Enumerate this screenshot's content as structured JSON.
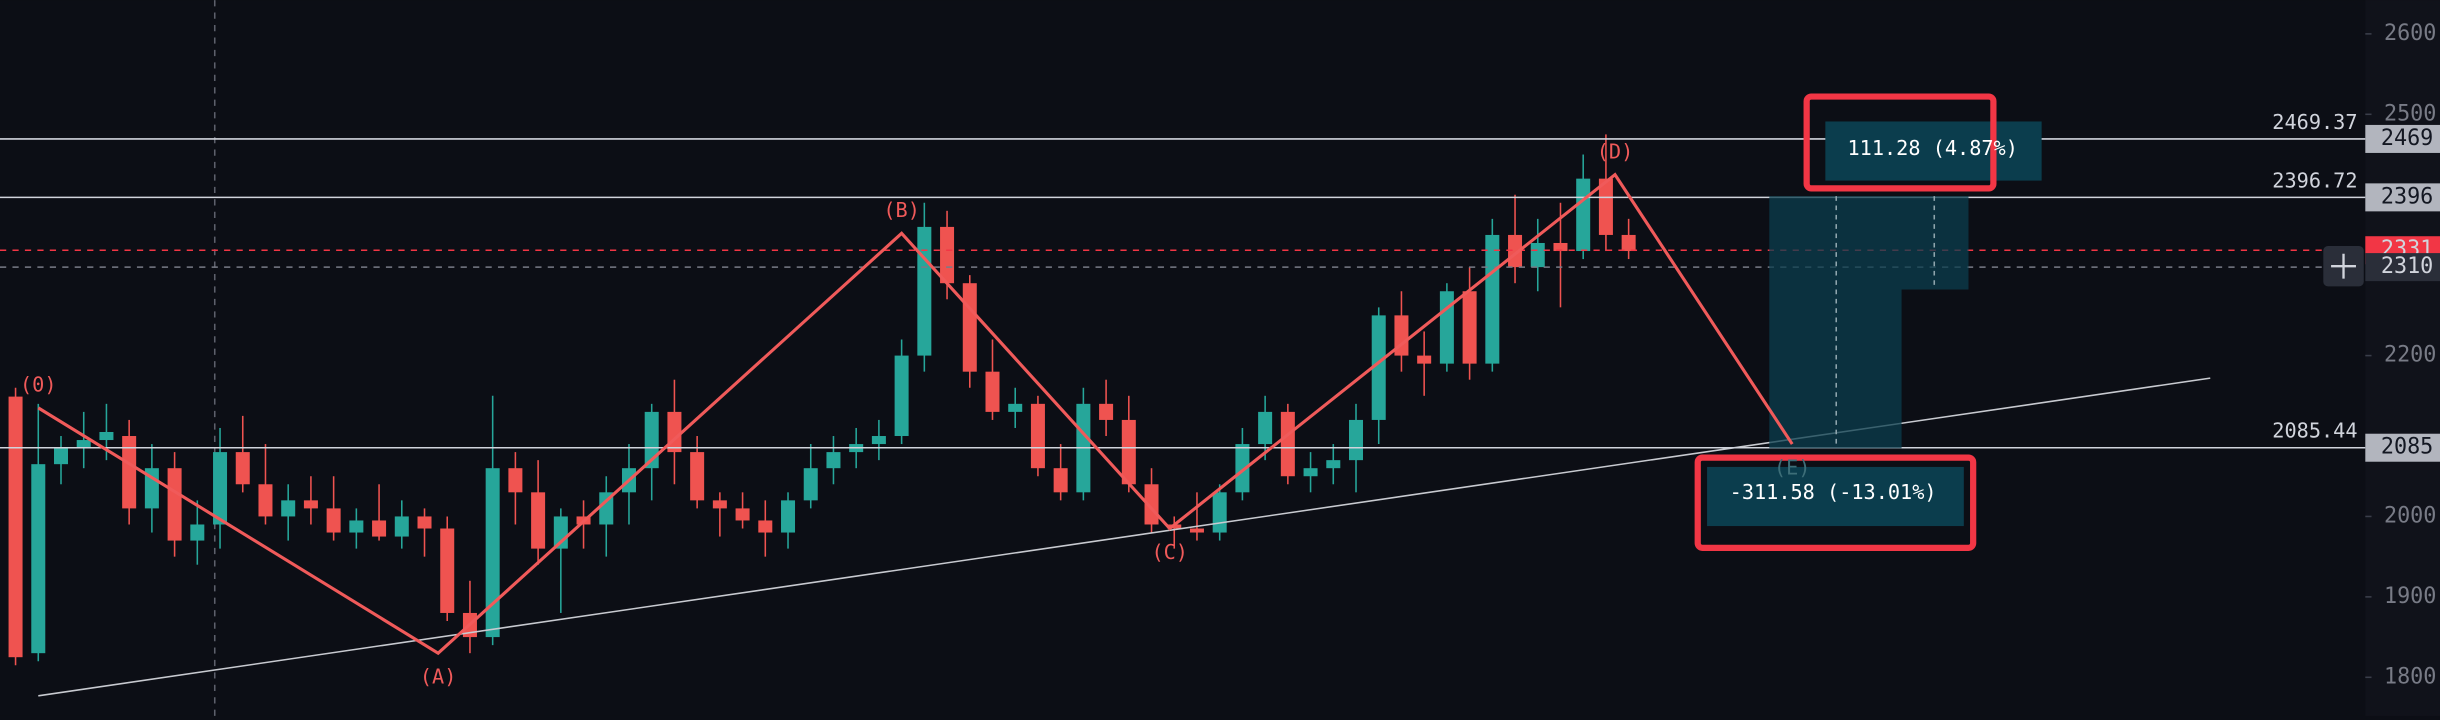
{
  "chart_data": {
    "type": "candlestick",
    "candles": [
      [
        2149,
        2160,
        1815,
        1825
      ],
      [
        1830,
        2140,
        1820,
        2065
      ],
      [
        2065,
        2100,
        2040,
        2085
      ],
      [
        2085,
        2130,
        2060,
        2095
      ],
      [
        2095,
        2140,
        2070,
        2105
      ],
      [
        2100,
        2120,
        1990,
        2010
      ],
      [
        2010,
        2090,
        1980,
        2060
      ],
      [
        2060,
        2080,
        1950,
        1970
      ],
      [
        1970,
        2020,
        1940,
        1990
      ],
      [
        1990,
        2110,
        1960,
        2080
      ],
      [
        2080,
        2125,
        2030,
        2040
      ],
      [
        2040,
        2090,
        1990,
        2000
      ],
      [
        2000,
        2040,
        1970,
        2020
      ],
      [
        2020,
        2050,
        1990,
        2010
      ],
      [
        2010,
        2050,
        1970,
        1980
      ],
      [
        1980,
        2010,
        1960,
        1995
      ],
      [
        1995,
        2040,
        1970,
        1975
      ],
      [
        1975,
        2020,
        1960,
        2000
      ],
      [
        2000,
        2010,
        1950,
        1985
      ],
      [
        1985,
        2000,
        1870,
        1880
      ],
      [
        1880,
        1920,
        1830,
        1850
      ],
      [
        1850,
        2150,
        1840,
        2060
      ],
      [
        2060,
        2080,
        1990,
        2030
      ],
      [
        2030,
        2070,
        1940,
        1960
      ],
      [
        1960,
        2010,
        1880,
        2000
      ],
      [
        2000,
        2020,
        1960,
        1990
      ],
      [
        1990,
        2050,
        1950,
        2030
      ],
      [
        2030,
        2090,
        1990,
        2060
      ],
      [
        2060,
        2140,
        2020,
        2130
      ],
      [
        2130,
        2170,
        2040,
        2080
      ],
      [
        2080,
        2100,
        2010,
        2020
      ],
      [
        2020,
        2030,
        1975,
        2010
      ],
      [
        2010,
        2030,
        1985,
        1995
      ],
      [
        1995,
        2020,
        1950,
        1980
      ],
      [
        1980,
        2030,
        1960,
        2020
      ],
      [
        2020,
        2090,
        2010,
        2060
      ],
      [
        2060,
        2100,
        2040,
        2080
      ],
      [
        2080,
        2110,
        2060,
        2090
      ],
      [
        2090,
        2120,
        2070,
        2100
      ],
      [
        2100,
        2220,
        2090,
        2200
      ],
      [
        2200,
        2390,
        2180,
        2360
      ],
      [
        2360,
        2380,
        2270,
        2290
      ],
      [
        2290,
        2300,
        2160,
        2180
      ],
      [
        2180,
        2220,
        2120,
        2130
      ],
      [
        2130,
        2160,
        2110,
        2140
      ],
      [
        2140,
        2150,
        2050,
        2060
      ],
      [
        2060,
        2090,
        2020,
        2030
      ],
      [
        2030,
        2160,
        2020,
        2140
      ],
      [
        2140,
        2170,
        2100,
        2120
      ],
      [
        2120,
        2150,
        2030,
        2040
      ],
      [
        2040,
        2060,
        1980,
        1990
      ],
      [
        1990,
        2000,
        1960,
        1985
      ],
      [
        1985,
        2030,
        1970,
        1980
      ],
      [
        1980,
        2040,
        1970,
        2030
      ],
      [
        2030,
        2110,
        2020,
        2090
      ],
      [
        2090,
        2150,
        2070,
        2130
      ],
      [
        2130,
        2140,
        2040,
        2050
      ],
      [
        2050,
        2080,
        2030,
        2060
      ],
      [
        2060,
        2090,
        2040,
        2070
      ],
      [
        2070,
        2140,
        2030,
        2120
      ],
      [
        2120,
        2260,
        2090,
        2250
      ],
      [
        2250,
        2280,
        2180,
        2200
      ],
      [
        2200,
        2230,
        2150,
        2190
      ],
      [
        2190,
        2290,
        2180,
        2280
      ],
      [
        2280,
        2310,
        2170,
        2190
      ],
      [
        2190,
        2370,
        2180,
        2350
      ],
      [
        2350,
        2400,
        2290,
        2310
      ],
      [
        2310,
        2370,
        2280,
        2340
      ],
      [
        2340,
        2390,
        2260,
        2330
      ],
      [
        2330,
        2450,
        2320,
        2420
      ],
      [
        2420,
        2475,
        2330,
        2350
      ],
      [
        2350,
        2370,
        2320,
        2330
      ]
    ],
    "colors": {
      "up": "#26a69a",
      "down": "#ef5350"
    },
    "ylim": [
      1752,
      2642
    ],
    "yticks": [
      1800,
      1900,
      2000,
      2200,
      2500,
      2600
    ],
    "levels": [
      {
        "value": 2469.37,
        "label": "2469.37",
        "tag": "2469"
      },
      {
        "value": 2396.72,
        "label": "2396.72",
        "tag": "2396"
      },
      {
        "value": 2085.44,
        "label": "2085.44",
        "tag": "2085"
      }
    ],
    "markers": [
      {
        "value": 2331,
        "tag": "2331",
        "color": "#f23645"
      },
      {
        "value": 2310,
        "tag": "2310",
        "color": "#787b86"
      }
    ],
    "waves": [
      {
        "label": "(0)",
        "index": 1,
        "price": 2135
      },
      {
        "label": "(A)",
        "index": 18.6,
        "price": 1830
      },
      {
        "label": "(B)",
        "index": 39,
        "price": 2352
      },
      {
        "label": "(C)",
        "index": 50.8,
        "price": 1985
      },
      {
        "label": "(D)",
        "index": 70.4,
        "price": 2425
      },
      {
        "label": "(E)",
        "index": 78.2,
        "price": 2090
      }
    ],
    "trendline": [
      {
        "index": 1,
        "price": 1777
      },
      {
        "index": 96.6,
        "price": 2172
      }
    ],
    "measures": [
      {
        "label": "111.28 (4.87%)"
      },
      {
        "label": "-311.58 (-13.01%)"
      }
    ]
  }
}
